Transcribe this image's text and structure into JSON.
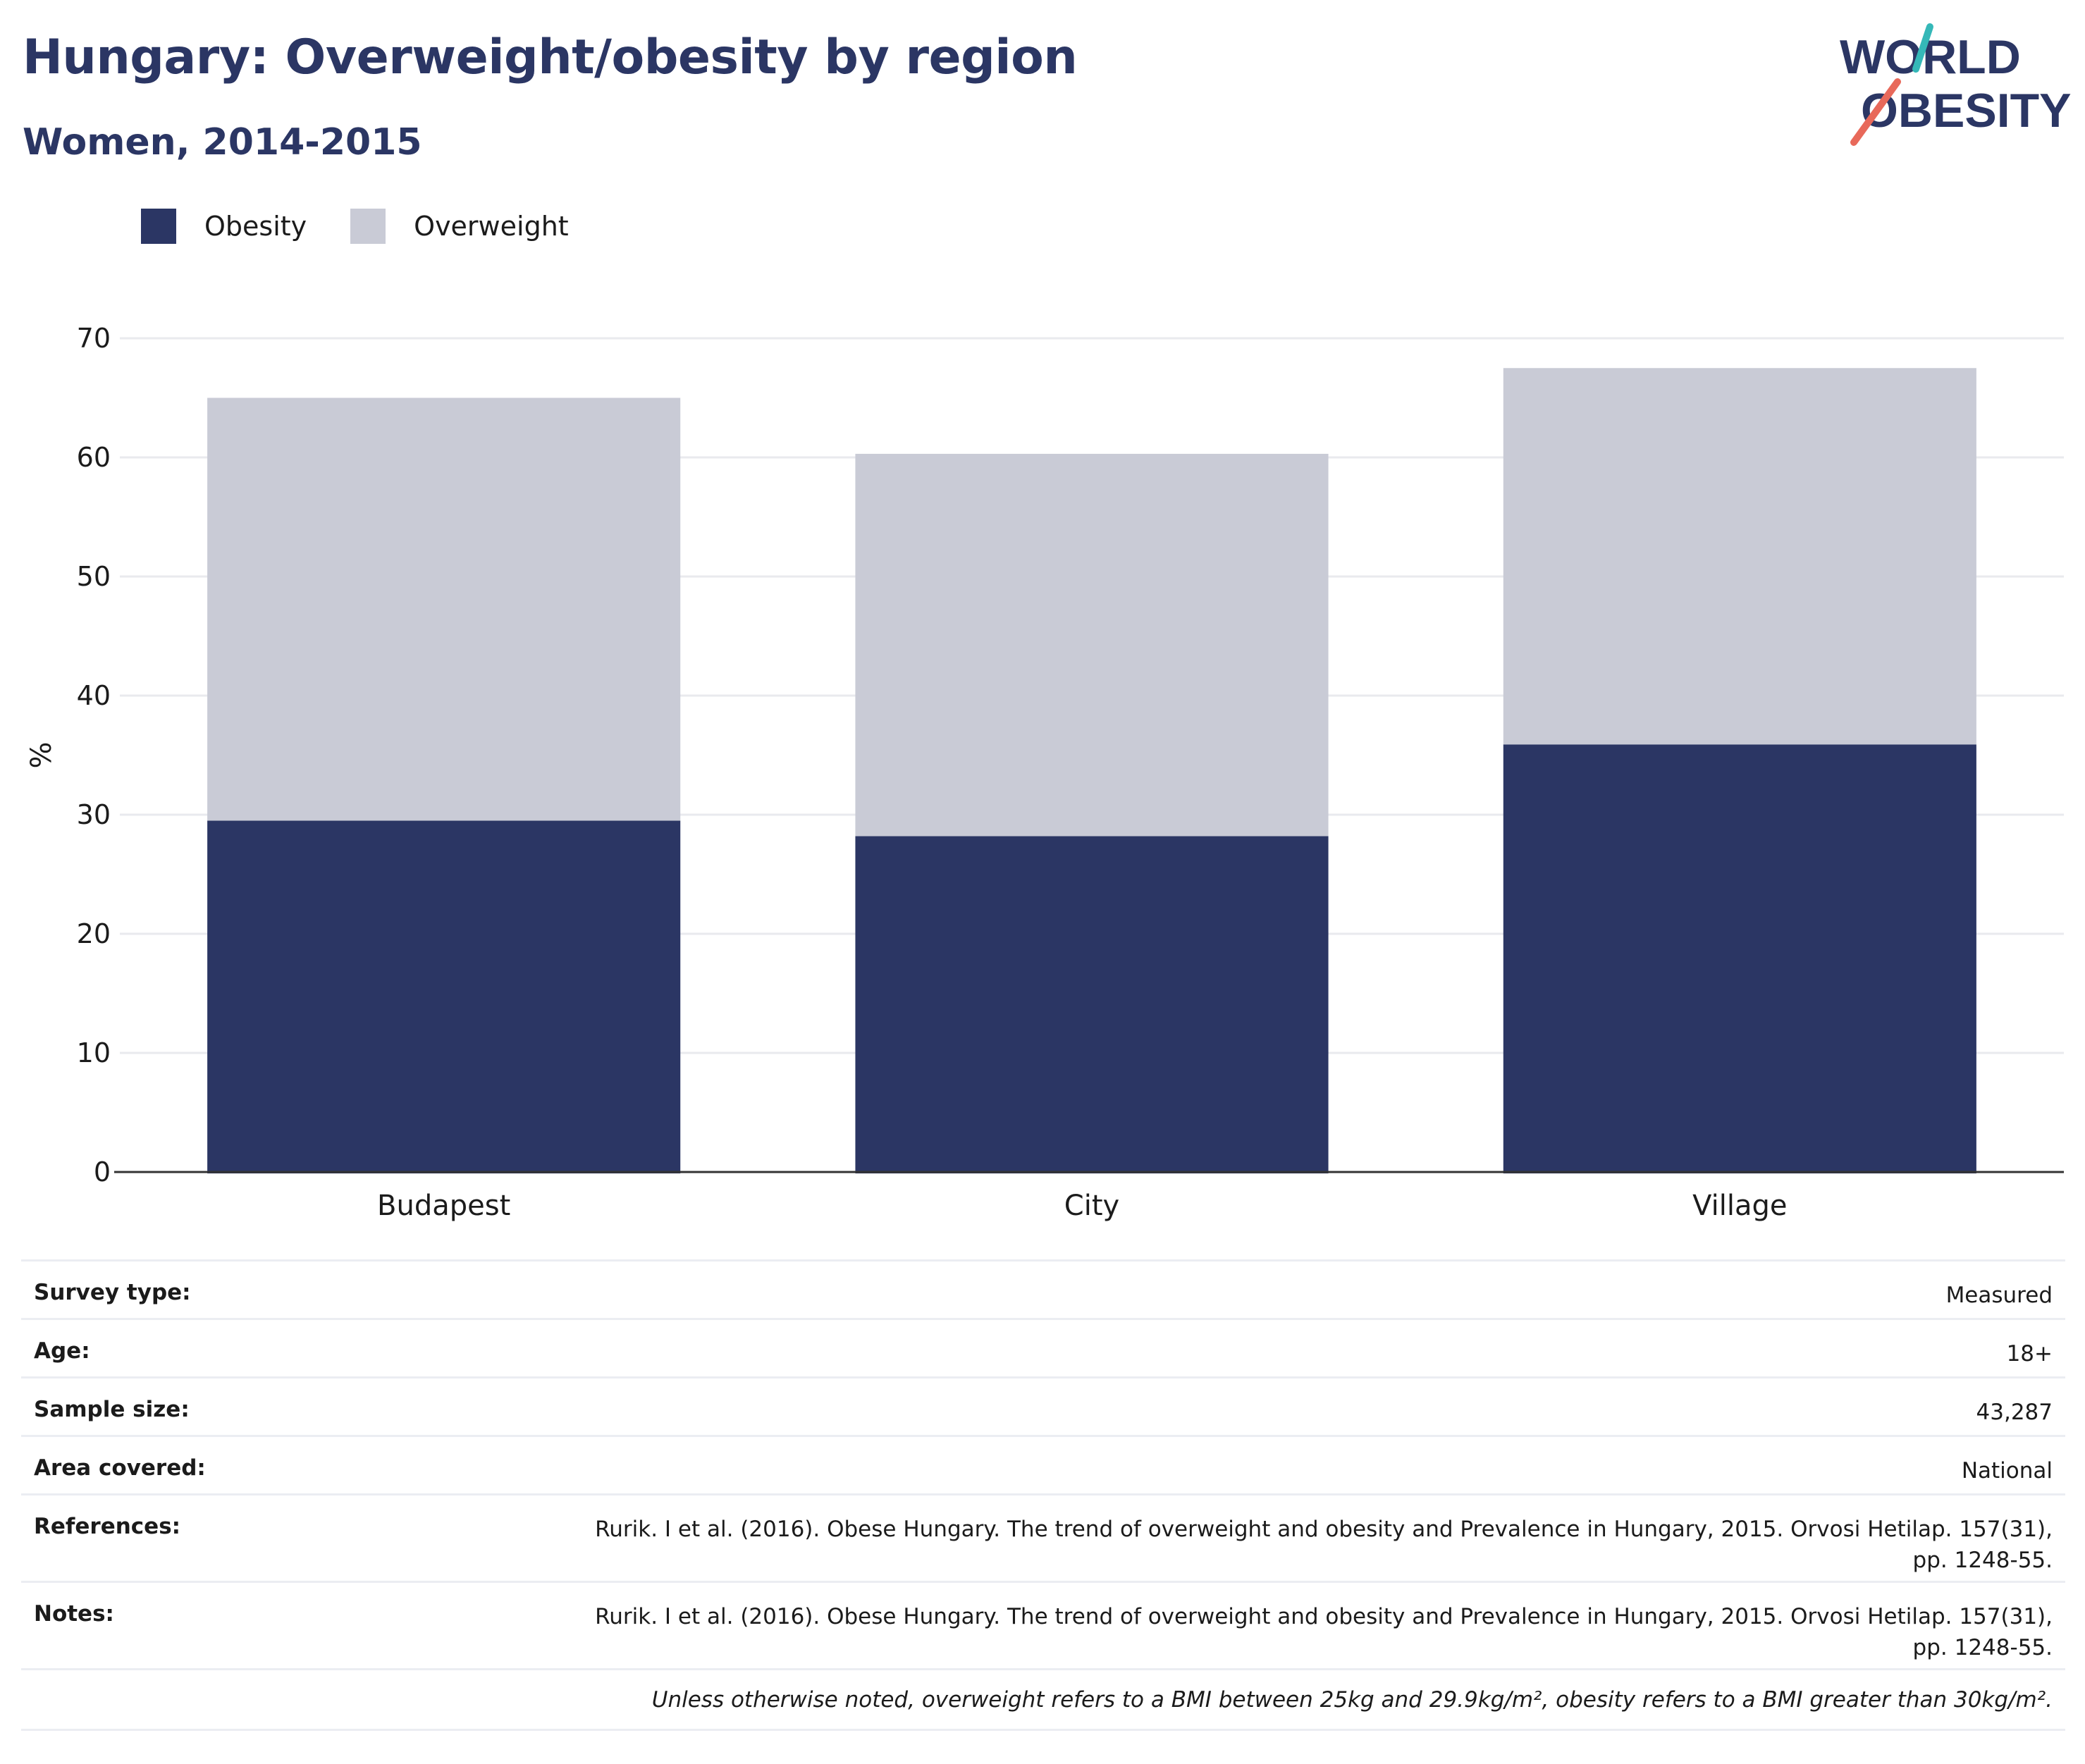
{
  "title": "Hungary: Overweight/obesity by region",
  "subtitle": "Women, 2014-2015",
  "logo": {
    "line1": "WORLD",
    "line2": "OBESITY",
    "text_color": "#2b3664",
    "accent_teal": "#35b8b8",
    "accent_coral": "#e8695a"
  },
  "colors": {
    "obesity": "#2b3664",
    "overweight": "#c9cbd6",
    "axis": "#333333",
    "grid": "#e9eaee"
  },
  "chart_data": {
    "type": "bar",
    "stacked": true,
    "categories": [
      "Budapest",
      "City",
      "Village"
    ],
    "series": [
      {
        "name": "Obesity",
        "values": [
          29.5,
          28.2,
          35.9
        ]
      },
      {
        "name": "Overweight",
        "values": [
          35.5,
          32.1,
          31.6
        ]
      }
    ],
    "ylabel": "%",
    "ylim": [
      0,
      70
    ],
    "yticks": [
      0,
      10,
      20,
      30,
      40,
      50,
      60,
      70
    ],
    "grid": true,
    "legend_position": "top-left"
  },
  "meta": [
    {
      "key": "Survey type:",
      "value": "Measured"
    },
    {
      "key": "Age:",
      "value": "18+"
    },
    {
      "key": "Sample size:",
      "value": "43,287"
    },
    {
      "key": "Area covered:",
      "value": "National"
    },
    {
      "key": "References:",
      "value": "Rurik. I et al. (2016). Obese Hungary. The trend of overweight and obesity and Prevalence in Hungary, 2015. Orvosi Hetilap. 157(31), pp. 1248-55."
    },
    {
      "key": "Notes:",
      "value": "Rurik. I et al. (2016). Obese Hungary. The trend of overweight and obesity and Prevalence in Hungary, 2015. Orvosi Hetilap. 157(31), pp. 1248-55."
    }
  ],
  "footnote": "Unless otherwise noted, overweight refers to a BMI between 25kg and 29.9kg/m², obesity refers to a BMI greater than 30kg/m²."
}
